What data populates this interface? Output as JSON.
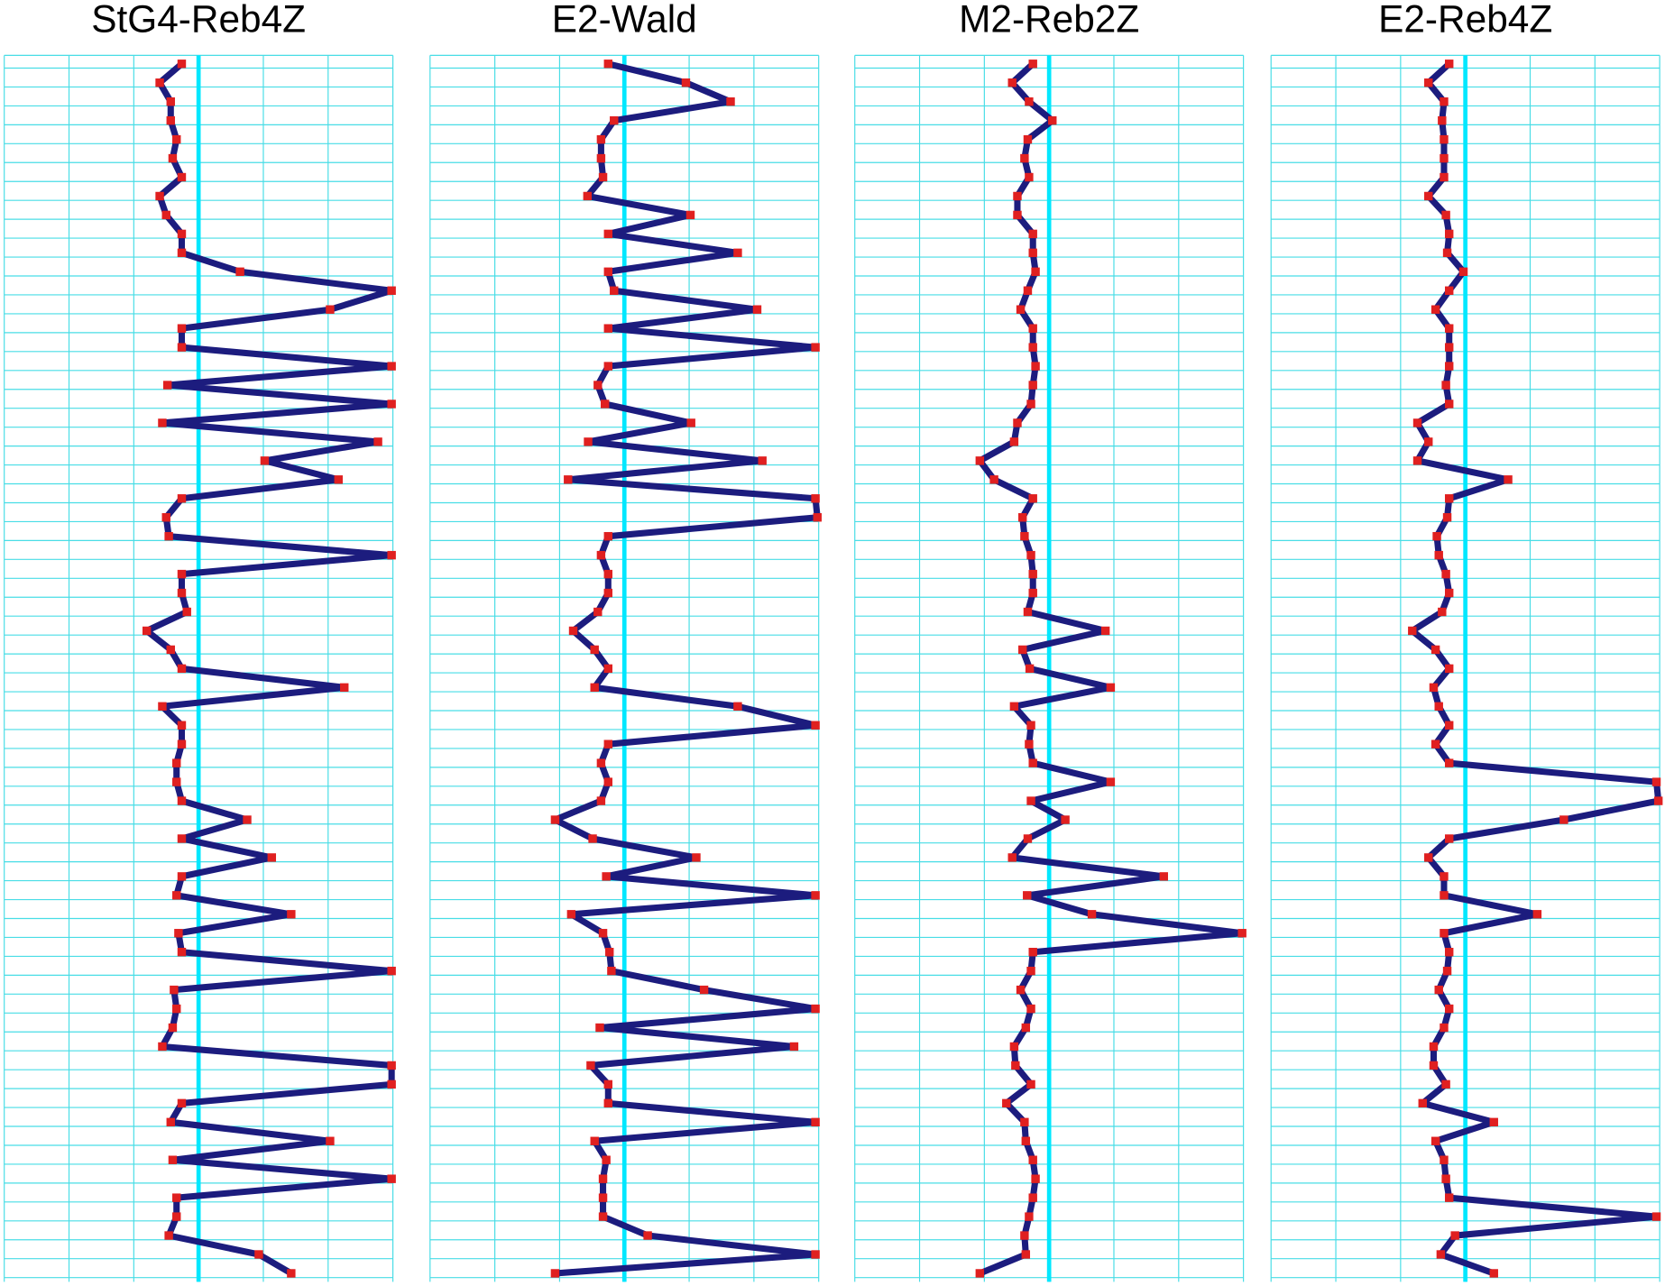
{
  "chart_data": [
    {
      "type": "line",
      "title": "StG4-Reb4Z",
      "color": "#1c1c7e",
      "marker_color": "#e02020",
      "grid": true,
      "reference_line": 0,
      "xlim": [
        -3,
        3
      ],
      "xticks": [
        -3,
        -2,
        -1,
        0,
        1,
        2,
        3
      ],
      "categories": [
        null,
        null,
        null,
        null,
        null,
        null,
        null,
        null,
        null,
        null,
        null,
        null,
        null,
        null,
        null,
        null,
        null,
        null,
        null,
        null,
        null,
        null,
        null,
        null,
        null,
        null,
        null,
        null,
        null,
        null,
        null,
        null,
        null,
        null,
        null,
        null,
        null,
        null,
        null,
        null,
        null,
        null,
        null,
        null,
        null,
        null,
        null,
        null,
        null,
        null,
        null,
        null,
        null,
        null,
        null,
        null,
        null,
        null,
        null,
        null,
        null,
        null,
        null,
        null,
        null
      ],
      "values": [
        -0.26,
        -0.6,
        -0.43,
        -0.43,
        -0.34,
        -0.4,
        -0.26,
        -0.6,
        -0.5,
        -0.26,
        -0.26,
        0.64,
        2.98,
        2.03,
        -0.26,
        -0.26,
        2.98,
        -0.48,
        2.98,
        -0.56,
        2.77,
        1.02,
        2.16,
        -0.26,
        -0.5,
        -0.46,
        2.98,
        -0.26,
        -0.26,
        -0.18,
        -0.8,
        -0.43,
        -0.26,
        2.25,
        -0.56,
        -0.26,
        -0.26,
        -0.34,
        -0.34,
        -0.26,
        0.75,
        -0.26,
        1.13,
        -0.26,
        -0.34,
        1.43,
        -0.31,
        -0.26,
        2.98,
        -0.38,
        -0.34,
        -0.4,
        -0.56,
        2.98,
        2.98,
        -0.26,
        -0.43,
        2.03,
        -0.4,
        2.98,
        -0.34,
        -0.34,
        -0.46,
        0.93,
        1.43
      ]
    },
    {
      "type": "line",
      "title": "E2-Wald",
      "color": "#1c1c7e",
      "marker_color": "#e02020",
      "grid": true,
      "reference_line": 0,
      "xlim": [
        -3,
        3
      ],
      "xticks": [
        -3,
        -2,
        -1,
        0,
        1,
        2,
        3
      ],
      "categories": [
        null,
        null,
        null,
        null,
        null,
        null,
        null,
        null,
        null,
        null,
        null,
        null,
        null,
        null,
        null,
        null,
        null,
        null,
        null,
        null,
        null,
        null,
        null,
        null,
        null,
        null,
        null,
        null,
        null,
        null,
        null,
        null,
        null,
        null,
        null,
        null,
        null,
        null,
        null,
        null,
        null,
        null,
        null,
        null,
        null,
        null,
        null,
        null,
        null,
        null,
        null,
        null,
        null,
        null,
        null,
        null,
        null,
        null,
        null,
        null,
        null,
        null,
        null,
        null,
        null
      ],
      "values": [
        -0.25,
        0.95,
        1.64,
        -0.16,
        -0.36,
        -0.36,
        -0.33,
        -0.57,
        1.02,
        -0.25,
        1.75,
        -0.25,
        -0.16,
        2.05,
        -0.25,
        2.95,
        -0.25,
        -0.41,
        -0.3,
        1.03,
        -0.56,
        2.13,
        -0.87,
        2.95,
        2.98,
        -0.25,
        -0.36,
        -0.25,
        -0.25,
        -0.41,
        -0.79,
        -0.46,
        -0.25,
        -0.46,
        1.75,
        2.95,
        -0.25,
        -0.36,
        -0.25,
        -0.36,
        -1.07,
        -0.49,
        1.11,
        -0.28,
        2.95,
        -0.82,
        -0.33,
        -0.23,
        -0.2,
        1.23,
        2.95,
        -0.38,
        2.62,
        -0.52,
        -0.25,
        -0.25,
        2.95,
        -0.46,
        -0.28,
        -0.33,
        -0.33,
        -0.33,
        0.36,
        2.95,
        -1.07
      ]
    },
    {
      "type": "line",
      "title": "M2-Reb2Z",
      "color": "#1c1c7e",
      "marker_color": "#e02020",
      "grid": true,
      "reference_line": 0,
      "xlim": [
        -3,
        3
      ],
      "xticks": [
        -3,
        -2,
        -1,
        0,
        1,
        2,
        3
      ],
      "categories": [
        null,
        null,
        null,
        null,
        null,
        null,
        null,
        null,
        null,
        null,
        null,
        null,
        null,
        null,
        null,
        null,
        null,
        null,
        null,
        null,
        null,
        null,
        null,
        null,
        null,
        null,
        null,
        null,
        null,
        null,
        null,
        null,
        null,
        null,
        null,
        null,
        null,
        null,
        null,
        null,
        null,
        null,
        null,
        null,
        null,
        null,
        null,
        null,
        null,
        null,
        null,
        null,
        null,
        null,
        null,
        null,
        null,
        null,
        null,
        null,
        null,
        null,
        null,
        null,
        null
      ],
      "values": [
        -0.25,
        -0.57,
        -0.31,
        0.05,
        -0.33,
        -0.38,
        -0.31,
        -0.49,
        -0.49,
        -0.25,
        -0.25,
        -0.21,
        -0.33,
        -0.44,
        -0.25,
        -0.25,
        -0.21,
        -0.25,
        -0.28,
        -0.49,
        -0.54,
        -1.07,
        -0.85,
        -0.25,
        -0.41,
        -0.38,
        -0.28,
        -0.25,
        -0.25,
        -0.33,
        0.87,
        -0.41,
        -0.3,
        0.95,
        -0.54,
        -0.28,
        -0.31,
        -0.25,
        0.95,
        -0.28,
        0.25,
        -0.33,
        -0.57,
        1.77,
        -0.34,
        0.66,
        2.98,
        -0.25,
        -0.28,
        -0.44,
        -0.28,
        -0.36,
        -0.54,
        -0.52,
        -0.28,
        -0.66,
        -0.38,
        -0.36,
        -0.25,
        -0.21,
        -0.25,
        -0.31,
        -0.38,
        -0.36,
        -1.07
      ]
    },
    {
      "type": "line",
      "title": "E2-Reb4Z",
      "color": "#1c1c7e",
      "marker_color": "#e02020",
      "grid": true,
      "reference_line": 0,
      "xlim": [
        -3,
        3
      ],
      "xticks": [
        -3,
        -2,
        -1,
        0,
        1,
        2,
        3
      ],
      "categories": [
        null,
        null,
        null,
        null,
        null,
        null,
        null,
        null,
        null,
        null,
        null,
        null,
        null,
        null,
        null,
        null,
        null,
        null,
        null,
        null,
        null,
        null,
        null,
        null,
        null,
        null,
        null,
        null,
        null,
        null,
        null,
        null,
        null,
        null,
        null,
        null,
        null,
        null,
        null,
        null,
        null,
        null,
        null,
        null,
        null,
        null,
        null,
        null,
        null,
        null,
        null,
        null,
        null,
        null,
        null,
        null,
        null,
        null,
        null,
        null,
        null,
        null,
        null,
        null,
        null
      ],
      "values": [
        -0.25,
        -0.57,
        -0.33,
        -0.36,
        -0.33,
        -0.33,
        -0.33,
        -0.57,
        -0.3,
        -0.25,
        -0.28,
        -0.03,
        -0.25,
        -0.46,
        -0.25,
        -0.25,
        -0.25,
        -0.3,
        -0.25,
        -0.74,
        -0.57,
        -0.74,
        0.66,
        -0.25,
        -0.28,
        -0.44,
        -0.41,
        -0.3,
        -0.25,
        -0.36,
        -0.82,
        -0.46,
        -0.25,
        -0.49,
        -0.41,
        -0.25,
        -0.46,
        -0.25,
        2.95,
        2.98,
        1.52,
        -0.25,
        -0.57,
        -0.33,
        -0.33,
        1.11,
        -0.33,
        -0.25,
        -0.28,
        -0.41,
        -0.25,
        -0.33,
        -0.49,
        -0.49,
        -0.3,
        -0.66,
        0.44,
        -0.46,
        -0.33,
        -0.3,
        -0.25,
        2.95,
        -0.16,
        -0.38,
        0.44
      ]
    }
  ]
}
